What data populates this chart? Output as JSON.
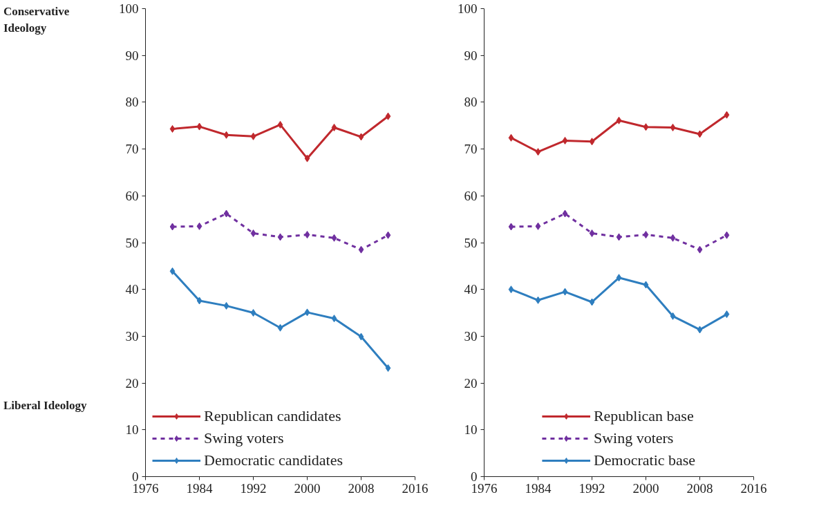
{
  "chart_data": [
    {
      "type": "line",
      "x": [
        1980,
        1984,
        1988,
        1992,
        1996,
        2000,
        2004,
        2008,
        2012
      ],
      "xlim": [
        1976,
        2016
      ],
      "xticks": [
        1976,
        1984,
        1992,
        2000,
        2008,
        2016
      ],
      "ylim": [
        0,
        100
      ],
      "yticks": [
        0,
        10,
        20,
        30,
        40,
        50,
        60,
        70,
        80,
        90,
        100
      ],
      "grid": false,
      "legend": "bottom left",
      "marker": "diamond",
      "annotations": [
        "Conservative Ideology",
        "Liberal Ideology"
      ],
      "series": [
        {
          "name": "Republican candidates",
          "color": "#c0282d",
          "line_style": "solid",
          "values": [
            74.3,
            74.8,
            73.0,
            72.7,
            75.2,
            68.0,
            74.6,
            72.6,
            77.0
          ]
        },
        {
          "name": "Swing voters",
          "color": "#7030a0",
          "line_style": "dashed",
          "values": [
            53.4,
            53.5,
            56.2,
            52.0,
            51.2,
            51.7,
            51.0,
            48.5,
            51.6
          ]
        },
        {
          "name": "Democratic candidates",
          "color": "#2e7ebf",
          "line_style": "solid",
          "values": [
            43.9,
            37.6,
            36.5,
            35.0,
            31.8,
            35.1,
            33.8,
            29.9,
            23.2
          ]
        }
      ]
    },
    {
      "type": "line",
      "x": [
        1980,
        1984,
        1988,
        1992,
        1996,
        2000,
        2004,
        2008,
        2012
      ],
      "xlim": [
        1976,
        2016
      ],
      "xticks": [
        1976,
        1984,
        1992,
        2000,
        2008,
        2016
      ],
      "ylim": [
        0,
        100
      ],
      "yticks": [
        0,
        10,
        20,
        30,
        40,
        50,
        60,
        70,
        80,
        90,
        100
      ],
      "grid": false,
      "legend": "bottom",
      "marker": "diamond",
      "series": [
        {
          "name": "Republican base",
          "color": "#c0282d",
          "line_style": "solid",
          "values": [
            72.4,
            69.4,
            71.8,
            71.6,
            76.1,
            74.7,
            74.6,
            73.2,
            77.3
          ]
        },
        {
          "name": "Swing voters",
          "color": "#7030a0",
          "line_style": "dashed",
          "values": [
            53.4,
            53.5,
            56.2,
            52.0,
            51.2,
            51.7,
            51.0,
            48.5,
            51.6
          ]
        },
        {
          "name": "Democratic base",
          "color": "#2e7ebf",
          "line_style": "solid",
          "values": [
            40.0,
            37.7,
            39.5,
            37.3,
            42.5,
            41.0,
            34.3,
            31.4,
            34.7
          ]
        }
      ]
    }
  ]
}
